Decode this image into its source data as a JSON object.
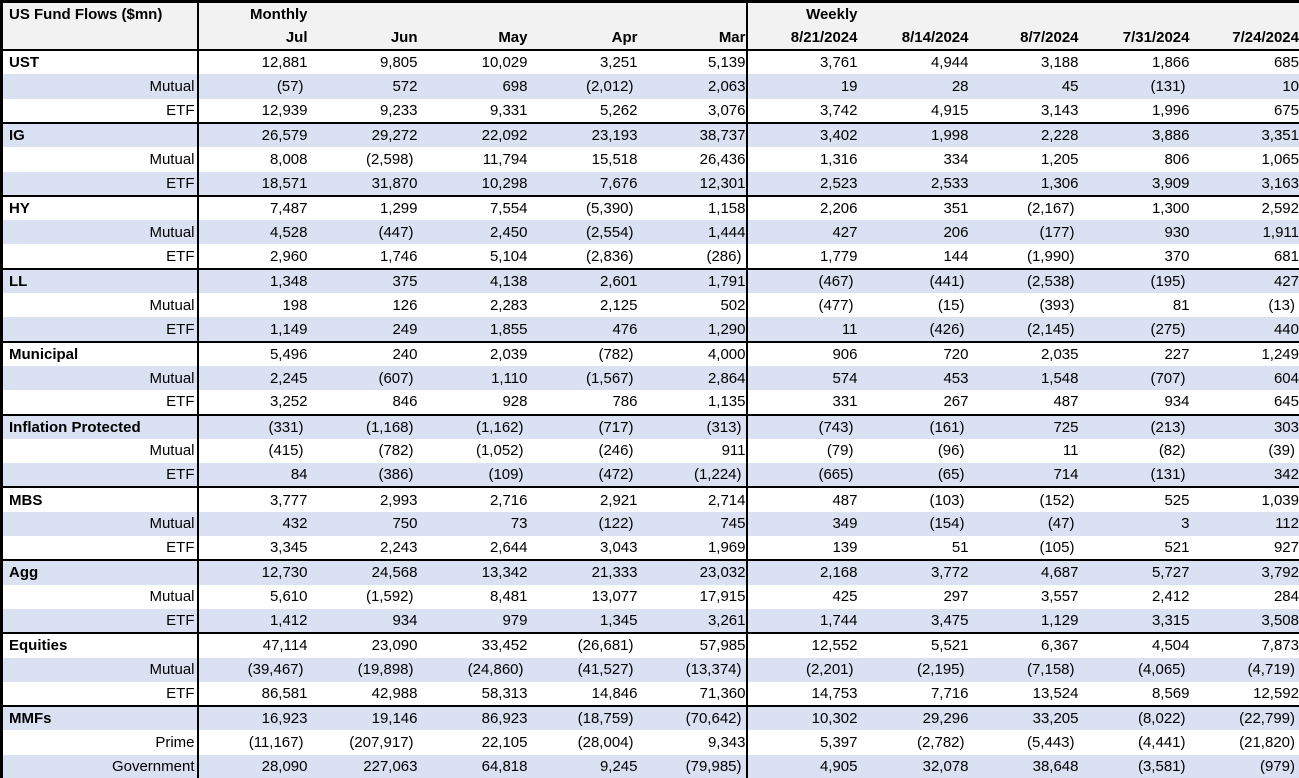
{
  "colors": {
    "stripe": "#d9e1f2",
    "header_bg": "#f2f2f2",
    "border": "#000000",
    "text": "#000000"
  },
  "chart_data": {
    "type": "table",
    "title": "US Fund Flows ($mn)",
    "group_headers": [
      {
        "label": "Monthly",
        "span": 5
      },
      {
        "label": "Weekly",
        "span": 5
      }
    ],
    "monthly_columns": [
      "Jul",
      "Jun",
      "May",
      "Apr",
      "Mar"
    ],
    "weekly_columns": [
      "8/21/2024",
      "8/14/2024",
      "8/7/2024",
      "7/31/2024",
      "7/24/2024"
    ],
    "sections": [
      {
        "name": "UST",
        "rows": [
          {
            "label": "UST",
            "header": true,
            "values": [
              "12,881",
              "9,805",
              "10,029",
              "3,251",
              "5,139",
              "3,761",
              "4,944",
              "3,188",
              "1,866",
              "685"
            ]
          },
          {
            "label": "Mutual",
            "header": false,
            "values": [
              "(57)",
              "572",
              "698",
              "(2,012)",
              "2,063",
              "19",
              "28",
              "45",
              "(131)",
              "10"
            ]
          },
          {
            "label": "ETF",
            "header": false,
            "values": [
              "12,939",
              "9,233",
              "9,331",
              "5,262",
              "3,076",
              "3,742",
              "4,915",
              "3,143",
              "1,996",
              "675"
            ]
          }
        ]
      },
      {
        "name": "IG",
        "rows": [
          {
            "label": "IG",
            "header": true,
            "values": [
              "26,579",
              "29,272",
              "22,092",
              "23,193",
              "38,737",
              "3,402",
              "1,998",
              "2,228",
              "3,886",
              "3,351"
            ]
          },
          {
            "label": "Mutual",
            "header": false,
            "values": [
              "8,008",
              "(2,598)",
              "11,794",
              "15,518",
              "26,436",
              "1,316",
              "334",
              "1,205",
              "806",
              "1,065"
            ]
          },
          {
            "label": "ETF",
            "header": false,
            "values": [
              "18,571",
              "31,870",
              "10,298",
              "7,676",
              "12,301",
              "2,523",
              "2,533",
              "1,306",
              "3,909",
              "3,163"
            ]
          }
        ]
      },
      {
        "name": "HY",
        "rows": [
          {
            "label": "HY",
            "header": true,
            "values": [
              "7,487",
              "1,299",
              "7,554",
              "(5,390)",
              "1,158",
              "2,206",
              "351",
              "(2,167)",
              "1,300",
              "2,592"
            ]
          },
          {
            "label": "Mutual",
            "header": false,
            "values": [
              "4,528",
              "(447)",
              "2,450",
              "(2,554)",
              "1,444",
              "427",
              "206",
              "(177)",
              "930",
              "1,911"
            ]
          },
          {
            "label": "ETF",
            "header": false,
            "values": [
              "2,960",
              "1,746",
              "5,104",
              "(2,836)",
              "(286)",
              "1,779",
              "144",
              "(1,990)",
              "370",
              "681"
            ]
          }
        ]
      },
      {
        "name": "LL",
        "rows": [
          {
            "label": "LL",
            "header": true,
            "values": [
              "1,348",
              "375",
              "4,138",
              "2,601",
              "1,791",
              "(467)",
              "(441)",
              "(2,538)",
              "(195)",
              "427"
            ]
          },
          {
            "label": "Mutual",
            "header": false,
            "values": [
              "198",
              "126",
              "2,283",
              "2,125",
              "502",
              "(477)",
              "(15)",
              "(393)",
              "81",
              "(13)"
            ]
          },
          {
            "label": "ETF",
            "header": false,
            "values": [
              "1,149",
              "249",
              "1,855",
              "476",
              "1,290",
              "11",
              "(426)",
              "(2,145)",
              "(275)",
              "440"
            ]
          }
        ]
      },
      {
        "name": "Municipal",
        "rows": [
          {
            "label": "Municipal",
            "header": true,
            "values": [
              "5,496",
              "240",
              "2,039",
              "(782)",
              "4,000",
              "906",
              "720",
              "2,035",
              "227",
              "1,249"
            ]
          },
          {
            "label": "Mutual",
            "header": false,
            "values": [
              "2,245",
              "(607)",
              "1,110",
              "(1,567)",
              "2,864",
              "574",
              "453",
              "1,548",
              "(707)",
              "604"
            ]
          },
          {
            "label": "ETF",
            "header": false,
            "values": [
              "3,252",
              "846",
              "928",
              "786",
              "1,135",
              "331",
              "267",
              "487",
              "934",
              "645"
            ]
          }
        ]
      },
      {
        "name": "Inflation Protected",
        "rows": [
          {
            "label": "Inflation Protected",
            "header": true,
            "values": [
              "(331)",
              "(1,168)",
              "(1,162)",
              "(717)",
              "(313)",
              "(743)",
              "(161)",
              "725",
              "(213)",
              "303"
            ]
          },
          {
            "label": "Mutual",
            "header": false,
            "values": [
              "(415)",
              "(782)",
              "(1,052)",
              "(246)",
              "911",
              "(79)",
              "(96)",
              "11",
              "(82)",
              "(39)"
            ]
          },
          {
            "label": "ETF",
            "header": false,
            "values": [
              "84",
              "(386)",
              "(109)",
              "(472)",
              "(1,224)",
              "(665)",
              "(65)",
              "714",
              "(131)",
              "342"
            ]
          }
        ]
      },
      {
        "name": "MBS",
        "rows": [
          {
            "label": "MBS",
            "header": true,
            "values": [
              "3,777",
              "2,993",
              "2,716",
              "2,921",
              "2,714",
              "487",
              "(103)",
              "(152)",
              "525",
              "1,039"
            ]
          },
          {
            "label": "Mutual",
            "header": false,
            "values": [
              "432",
              "750",
              "73",
              "(122)",
              "745",
              "349",
              "(154)",
              "(47)",
              "3",
              "112"
            ]
          },
          {
            "label": "ETF",
            "header": false,
            "values": [
              "3,345",
              "2,243",
              "2,644",
              "3,043",
              "1,969",
              "139",
              "51",
              "(105)",
              "521",
              "927"
            ]
          }
        ]
      },
      {
        "name": "Agg",
        "rows": [
          {
            "label": "Agg",
            "header": true,
            "values": [
              "12,730",
              "24,568",
              "13,342",
              "21,333",
              "23,032",
              "2,168",
              "3,772",
              "4,687",
              "5,727",
              "3,792"
            ]
          },
          {
            "label": "Mutual",
            "header": false,
            "values": [
              "5,610",
              "(1,592)",
              "8,481",
              "13,077",
              "17,915",
              "425",
              "297",
              "3,557",
              "2,412",
              "284"
            ]
          },
          {
            "label": "ETF",
            "header": false,
            "values": [
              "1,412",
              "934",
              "979",
              "1,345",
              "3,261",
              "1,744",
              "3,475",
              "1,129",
              "3,315",
              "3,508"
            ]
          }
        ]
      },
      {
        "name": "Equities",
        "rows": [
          {
            "label": "Equities",
            "header": true,
            "values": [
              "47,114",
              "23,090",
              "33,452",
              "(26,681)",
              "57,985",
              "12,552",
              "5,521",
              "6,367",
              "4,504",
              "7,873"
            ]
          },
          {
            "label": "Mutual",
            "header": false,
            "values": [
              "(39,467)",
              "(19,898)",
              "(24,860)",
              "(41,527)",
              "(13,374)",
              "(2,201)",
              "(2,195)",
              "(7,158)",
              "(4,065)",
              "(4,719)"
            ]
          },
          {
            "label": "ETF",
            "header": false,
            "values": [
              "86,581",
              "42,988",
              "58,313",
              "14,846",
              "71,360",
              "14,753",
              "7,716",
              "13,524",
              "8,569",
              "12,592"
            ]
          }
        ]
      },
      {
        "name": "MMFs",
        "rows": [
          {
            "label": "MMFs",
            "header": true,
            "values": [
              "16,923",
              "19,146",
              "86,923",
              "(18,759)",
              "(70,642)",
              "10,302",
              "29,296",
              "33,205",
              "(8,022)",
              "(22,799)"
            ]
          },
          {
            "label": "Prime",
            "header": false,
            "values": [
              "(11,167)",
              "(207,917)",
              "22,105",
              "(28,004)",
              "9,343",
              "5,397",
              "(2,782)",
              "(5,443)",
              "(4,441)",
              "(21,820)"
            ]
          },
          {
            "label": "Government",
            "header": false,
            "values": [
              "28,090",
              "227,063",
              "64,818",
              "9,245",
              "(79,985)",
              "4,905",
              "32,078",
              "38,648",
              "(3,581)",
              "(979)"
            ]
          }
        ]
      }
    ]
  }
}
